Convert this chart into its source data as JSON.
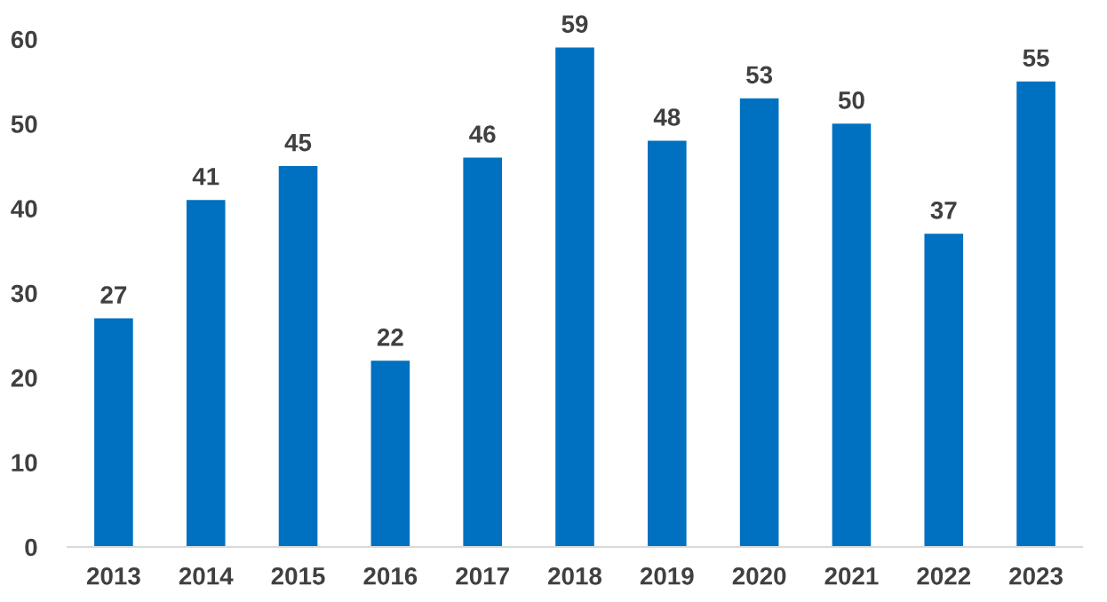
{
  "chart_data": {
    "type": "bar",
    "categories": [
      "2013",
      "2014",
      "2015",
      "2016",
      "2017",
      "2018",
      "2019",
      "2020",
      "2021",
      "2022",
      "2023"
    ],
    "values": [
      27,
      41,
      45,
      22,
      46,
      59,
      48,
      53,
      50,
      37,
      55
    ],
    "color": "#0070c0",
    "ylim": [
      0,
      60
    ],
    "yticks": [
      0,
      10,
      20,
      30,
      40,
      50,
      60
    ],
    "data_labels": true,
    "grid": false,
    "legend": false
  }
}
